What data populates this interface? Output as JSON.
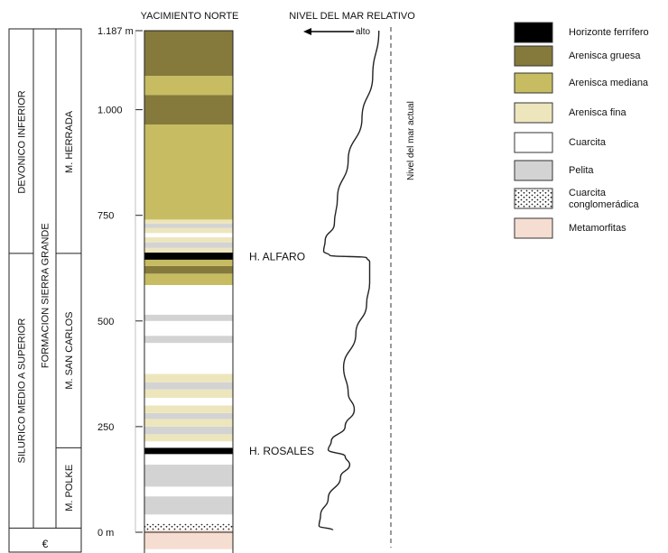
{
  "titles": {
    "column": "YACIMIENTO NORTE",
    "sea_level": "NIVEL DEL MAR RELATIVO",
    "sea_high": "alto",
    "current_level": "Nivel del mar actual"
  },
  "stratigraphy": {
    "periods": [
      {
        "label": "DEVONICO INFERIOR",
        "from": 660,
        "to": 1187
      },
      {
        "label": "SILURICO MEDIO A SUPERIOR",
        "from": 10,
        "to": 660
      },
      {
        "label": "€",
        "from": -30,
        "to": 10
      }
    ],
    "formation": {
      "label": "FORMACION SIERRA GRANDE",
      "from": 10,
      "to": 1187
    },
    "members": [
      {
        "label": "M. HERRADA",
        "from": 660,
        "to": 1187
      },
      {
        "label": "M. SAN CARLOS",
        "from": 200,
        "to": 660
      },
      {
        "label": "M. POLKE",
        "from": 10,
        "to": 200
      }
    ]
  },
  "scale": {
    "unit": "m",
    "ticks": [
      {
        "value": 1187,
        "label": "1.187 m"
      },
      {
        "value": 1000,
        "label": "1.000"
      },
      {
        "value": 750,
        "label": "750"
      },
      {
        "value": 500,
        "label": "500"
      },
      {
        "value": 250,
        "label": "250"
      },
      {
        "value": 0,
        "label": "0 m"
      }
    ]
  },
  "column_layers": [
    {
      "from": -40,
      "to": 5,
      "type": "metamorfitas"
    },
    {
      "from": 5,
      "to": 20,
      "type": "cuarcita_conglomeradica"
    },
    {
      "from": 20,
      "to": 42,
      "type": "cuarcita"
    },
    {
      "from": 42,
      "to": 85,
      "type": "pelita"
    },
    {
      "from": 85,
      "to": 108,
      "type": "cuarcita"
    },
    {
      "from": 108,
      "to": 160,
      "type": "pelita"
    },
    {
      "from": 160,
      "to": 185,
      "type": "cuarcita"
    },
    {
      "from": 185,
      "to": 200,
      "type": "horizonte_ferrifero"
    },
    {
      "from": 200,
      "to": 215,
      "type": "cuarcita"
    },
    {
      "from": 215,
      "to": 232,
      "type": "arenisca_fina"
    },
    {
      "from": 232,
      "to": 250,
      "type": "pelita"
    },
    {
      "from": 250,
      "to": 268,
      "type": "arenisca_fina"
    },
    {
      "from": 268,
      "to": 282,
      "type": "pelita"
    },
    {
      "from": 282,
      "to": 300,
      "type": "arenisca_fina"
    },
    {
      "from": 300,
      "to": 318,
      "type": "cuarcita"
    },
    {
      "from": 318,
      "to": 338,
      "type": "arenisca_fina"
    },
    {
      "from": 338,
      "to": 355,
      "type": "pelita"
    },
    {
      "from": 355,
      "to": 375,
      "type": "arenisca_fina"
    },
    {
      "from": 375,
      "to": 448,
      "type": "cuarcita"
    },
    {
      "from": 448,
      "to": 465,
      "type": "pelita"
    },
    {
      "from": 465,
      "to": 500,
      "type": "cuarcita"
    },
    {
      "from": 500,
      "to": 515,
      "type": "pelita"
    },
    {
      "from": 515,
      "to": 585,
      "type": "cuarcita"
    },
    {
      "from": 585,
      "to": 612,
      "type": "arenisca_mediana"
    },
    {
      "from": 612,
      "to": 630,
      "type": "arenisca_gruesa"
    },
    {
      "from": 630,
      "to": 645,
      "type": "arenisca_mediana"
    },
    {
      "from": 645,
      "to": 662,
      "type": "horizonte_ferrifero"
    },
    {
      "from": 662,
      "to": 673,
      "type": "arenisca_fina"
    },
    {
      "from": 673,
      "to": 686,
      "type": "pelita"
    },
    {
      "from": 686,
      "to": 698,
      "type": "arenisca_fina"
    },
    {
      "from": 698,
      "to": 708,
      "type": "cuarcita"
    },
    {
      "from": 708,
      "to": 720,
      "type": "arenisca_fina"
    },
    {
      "from": 720,
      "to": 730,
      "type": "pelita"
    },
    {
      "from": 730,
      "to": 740,
      "type": "arenisca_fina"
    },
    {
      "from": 740,
      "to": 965,
      "type": "arenisca_mediana"
    },
    {
      "from": 965,
      "to": 1035,
      "type": "arenisca_gruesa"
    },
    {
      "from": 1035,
      "to": 1080,
      "type": "arenisca_mediana"
    },
    {
      "from": 1080,
      "to": 1187,
      "type": "arenisca_gruesa"
    }
  ],
  "markers": [
    {
      "label": "H. ALFARO",
      "value": 652
    },
    {
      "label": "H. ROSALES",
      "value": 192
    }
  ],
  "sea_level_curve": [
    {
      "depth": 1187,
      "level": 0.82
    },
    {
      "depth": 1080,
      "level": 0.74
    },
    {
      "depth": 980,
      "level": 0.6
    },
    {
      "depth": 880,
      "level": 0.42
    },
    {
      "depth": 790,
      "level": 0.28
    },
    {
      "depth": 730,
      "level": 0.24
    },
    {
      "depth": 690,
      "level": 0.12
    },
    {
      "depth": 665,
      "level": 0.1
    },
    {
      "depth": 655,
      "level": 0.18
    },
    {
      "depth": 650,
      "level": 0.66
    },
    {
      "depth": 640,
      "level": 0.7
    },
    {
      "depth": 590,
      "level": 0.7
    },
    {
      "depth": 540,
      "level": 0.66
    },
    {
      "depth": 470,
      "level": 0.52
    },
    {
      "depth": 390,
      "level": 0.36
    },
    {
      "depth": 330,
      "level": 0.42
    },
    {
      "depth": 290,
      "level": 0.5
    },
    {
      "depth": 250,
      "level": 0.38
    },
    {
      "depth": 215,
      "level": 0.2
    },
    {
      "depth": 195,
      "level": 0.16
    },
    {
      "depth": 180,
      "level": 0.38
    },
    {
      "depth": 160,
      "level": 0.44
    },
    {
      "depth": 130,
      "level": 0.32
    },
    {
      "depth": 80,
      "level": 0.16
    },
    {
      "depth": 40,
      "level": 0.06
    },
    {
      "depth": 15,
      "level": 0.04
    },
    {
      "depth": 5,
      "level": 0.22
    }
  ],
  "legend": [
    {
      "key": "horizonte_ferrifero",
      "label": "Horizonte ferrífero",
      "color": "#000000"
    },
    {
      "key": "arenisca_gruesa",
      "label": "Arenisca gruesa",
      "color": "#857a3c"
    },
    {
      "key": "arenisca_mediana",
      "label": "Arenisca mediana",
      "color": "#c7bc62"
    },
    {
      "key": "arenisca_fina",
      "label": "Arenisca fina",
      "color": "#ede6bd"
    },
    {
      "key": "cuarcita",
      "label": "Cuarcita",
      "color": "#ffffff"
    },
    {
      "key": "pelita",
      "label": "Pelita",
      "color": "#d3d3d3"
    },
    {
      "key": "cuarcita_conglomeradica",
      "label": "Cuarcita\nconglomerádica",
      "color": "#ffffff"
    },
    {
      "key": "metamorfitas",
      "label": "Metamorfitas",
      "color": "#f6ddd2"
    }
  ]
}
